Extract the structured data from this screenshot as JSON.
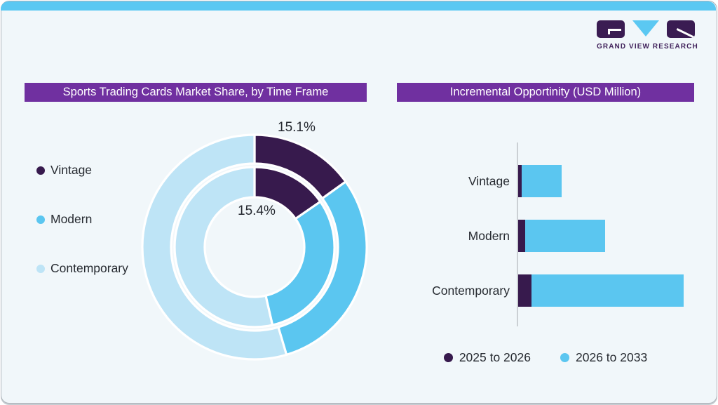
{
  "header": {
    "logo_monogram": "GVR",
    "logo_text": "GRAND VIEW RESEARCH"
  },
  "left_panel": {
    "title": "Sports Trading Cards Market Share, by Time Frame",
    "legend": [
      {
        "label": "Vintage",
        "color": "#371A4D"
      },
      {
        "label": "Modern",
        "color": "#5BC6F0"
      },
      {
        "label": "Contemporary",
        "color": "#BEE4F6"
      }
    ],
    "data_labels": {
      "outer": "15.1%",
      "inner": "15.4%"
    }
  },
  "right_panel": {
    "title": "Incremental Opportinity (USD Million)",
    "categories": [
      "Vintage",
      "Modern",
      "Contemporary"
    ],
    "legend": [
      {
        "label": "2025 to 2026",
        "color": "#371A4D"
      },
      {
        "label": "2026 to 2033",
        "color": "#5BC6F0"
      }
    ]
  },
  "chart_data": [
    {
      "type": "donut",
      "title": "Sports Trading Cards Market Share, by Time Frame",
      "categories": [
        "Vintage",
        "Modern",
        "Contemporary"
      ],
      "colors": [
        "#371A4D",
        "#5BC6F0",
        "#BEE4F6"
      ],
      "start_angle_deg": 0,
      "direction": "clockwise",
      "legend_position": "left",
      "rings": [
        {
          "name": "outer_ring",
          "values_pct": [
            15.1,
            30.3,
            54.6
          ]
        },
        {
          "name": "inner_ring",
          "values_pct": [
            15.4,
            31.0,
            53.6
          ]
        }
      ],
      "data_labels": [
        {
          "text": "15.1%",
          "ring": "outer_ring",
          "category": "Vintage",
          "position": "outside-top"
        },
        {
          "text": "15.4%",
          "ring": "inner_ring",
          "category": "Vintage",
          "position": "center-hole"
        }
      ]
    },
    {
      "type": "bar",
      "title": "Incremental Opportinity (USD Million)",
      "orientation": "horizontal",
      "stacked": true,
      "categories": [
        "Vintage",
        "Modern",
        "Contemporary"
      ],
      "series": [
        {
          "name": "2025 to 2026",
          "color": "#371A4D",
          "values_rel": [
            5,
            10,
            19
          ]
        },
        {
          "name": "2026 to 2033",
          "color": "#5BC6F0",
          "values_rel": [
            57,
            114,
            217
          ]
        }
      ],
      "units": "USD Million (axis tick values not shown in image; values are relative bar lengths)",
      "axis_labels_shown": false,
      "legend_position": "bottom"
    }
  ],
  "colors": {
    "top_bar": "#5BC8F2",
    "card_background": "#F1F7FA",
    "card_border": "#AEB5BB",
    "title_bar": "#7030A0",
    "title_text": "#FFFFFF",
    "text_dark": "#23272E",
    "axis_line": "#CBD0D4",
    "logo_purple": "#3A1C52",
    "slice_gap": "#FFFFFF"
  }
}
